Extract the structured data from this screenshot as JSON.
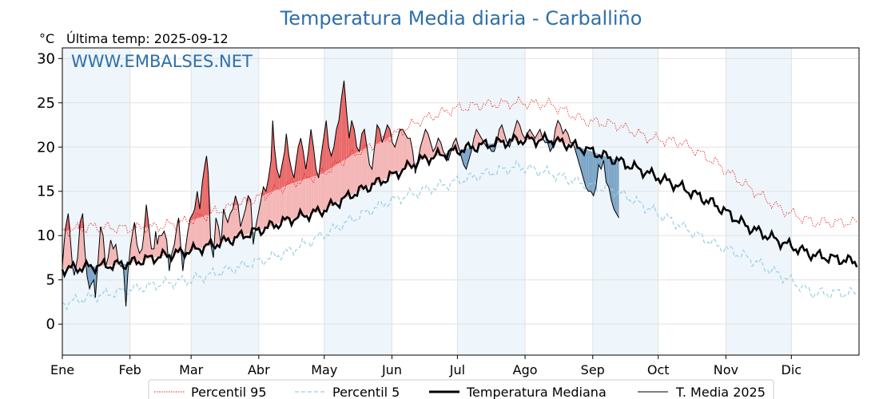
{
  "chart_data": {
    "type": "line",
    "title": "Temperatura Media diaria - Carballiño",
    "unit": "°C",
    "subtitle": "Última temp: 2025-09-12",
    "watermark": "WWW.EMBALSES.NET",
    "ylim": [
      -3.5,
      31.2
    ],
    "y_ticks": [
      0,
      5,
      10,
      15,
      20,
      25,
      30
    ],
    "x_ticks": [
      "Ene",
      "Feb",
      "Mar",
      "Abr",
      "May",
      "Jun",
      "Jul",
      "Ago",
      "Sep",
      "Oct",
      "Nov",
      "Dic"
    ],
    "grid": true,
    "legend_position": "bottom",
    "colors": {
      "p95": "#e8201c",
      "p5": "#9ccfe0",
      "median": "#000000",
      "current": "#000000",
      "above_fill": "#f4b6b6",
      "below_fill": "#7ea6c8",
      "band": "#eef5fb",
      "title": "#2e6fa8"
    },
    "series": [
      {
        "name": "Percentil 95",
        "style": "dotted",
        "points": [
          [
            1,
            10.5
          ],
          [
            15,
            11
          ],
          [
            30,
            10.8
          ],
          [
            45,
            11
          ],
          [
            60,
            11.7
          ],
          [
            75,
            13
          ],
          [
            90,
            14.2
          ],
          [
            105,
            15.8
          ],
          [
            120,
            17
          ],
          [
            135,
            19.3
          ],
          [
            150,
            21
          ],
          [
            165,
            23
          ],
          [
            180,
            24.3
          ],
          [
            195,
            24.8
          ],
          [
            210,
            25
          ],
          [
            225,
            24.8
          ],
          [
            240,
            23
          ],
          [
            255,
            22.5
          ],
          [
            270,
            21
          ],
          [
            285,
            20.5
          ],
          [
            300,
            18.3
          ],
          [
            315,
            15.5
          ],
          [
            330,
            13
          ],
          [
            345,
            11.5
          ],
          [
            365,
            11.5
          ]
        ]
      },
      {
        "name": "Percentil 5",
        "style": "dashed",
        "points": [
          [
            1,
            2.3
          ],
          [
            15,
            3.1
          ],
          [
            30,
            3.8
          ],
          [
            45,
            4.5
          ],
          [
            60,
            5
          ],
          [
            75,
            6
          ],
          [
            90,
            7
          ],
          [
            105,
            8.2
          ],
          [
            120,
            10
          ],
          [
            135,
            12
          ],
          [
            150,
            13.8
          ],
          [
            165,
            15
          ],
          [
            180,
            16
          ],
          [
            195,
            17
          ],
          [
            210,
            17.8
          ],
          [
            225,
            17
          ],
          [
            240,
            15.8
          ],
          [
            255,
            15
          ],
          [
            270,
            13
          ],
          [
            285,
            11
          ],
          [
            300,
            9
          ],
          [
            315,
            7.5
          ],
          [
            330,
            5.5
          ],
          [
            345,
            3.5
          ],
          [
            365,
            3.5
          ]
        ]
      },
      {
        "name": "Temperatura Mediana",
        "style": "thick",
        "points": [
          [
            1,
            6.2
          ],
          [
            15,
            6.5
          ],
          [
            30,
            6.8
          ],
          [
            45,
            7.6
          ],
          [
            60,
            8.3
          ],
          [
            75,
            9.3
          ],
          [
            90,
            10.5
          ],
          [
            105,
            11.8
          ],
          [
            120,
            12.8
          ],
          [
            135,
            14.8
          ],
          [
            150,
            16.5
          ],
          [
            165,
            18.5
          ],
          [
            180,
            19.5
          ],
          [
            195,
            20.3
          ],
          [
            210,
            20.8
          ],
          [
            225,
            20.8
          ],
          [
            240,
            19.8
          ],
          [
            255,
            18.5
          ],
          [
            270,
            17
          ],
          [
            285,
            15.4
          ],
          [
            300,
            13.5
          ],
          [
            315,
            11
          ],
          [
            330,
            9.3
          ],
          [
            345,
            7.8
          ],
          [
            365,
            7
          ]
        ]
      },
      {
        "name": "T. Media 2025",
        "style": "thin",
        "points": [
          [
            1,
            6.5
          ],
          [
            3,
            9
          ],
          [
            5,
            11
          ],
          [
            8,
            12.5
          ],
          [
            11,
            9
          ],
          [
            13,
            6.5
          ],
          [
            15,
            5.5
          ],
          [
            19,
            7.5
          ],
          [
            22,
            11.5
          ],
          [
            25,
            12.5
          ],
          [
            27,
            9
          ],
          [
            30,
            5.5
          ],
          [
            33,
            4
          ],
          [
            35,
            4.5
          ],
          [
            38,
            5
          ],
          [
            40,
            3
          ],
          [
            43,
            7
          ],
          [
            46,
            11
          ],
          [
            49,
            10
          ],
          [
            52,
            6.5
          ],
          [
            55,
            7.5
          ],
          [
            58,
            9.5
          ],
          [
            61,
            8.5
          ],
          [
            64,
            9
          ],
          [
            67,
            7
          ],
          [
            70,
            6.5
          ],
          [
            73,
            6.5
          ],
          [
            76,
            2
          ],
          [
            78,
            5.5
          ],
          [
            81,
            8.5
          ],
          [
            84,
            10.5
          ],
          [
            86,
            11.5
          ],
          [
            89,
            9
          ],
          [
            92,
            8
          ],
          [
            95,
            8.5
          ],
          [
            97,
            10
          ],
          [
            100,
            13.5
          ],
          [
            103,
            11
          ],
          [
            106,
            8.5
          ],
          [
            109,
            8.5
          ],
          [
            111,
            10.5
          ],
          [
            113,
            9
          ],
          [
            115,
            10
          ],
          [
            118,
            10
          ],
          [
            121,
            10.5
          ],
          [
            124,
            9.5
          ],
          [
            127,
            6
          ],
          [
            130,
            8
          ],
          [
            133,
            9
          ],
          [
            136,
            11
          ],
          [
            138,
            12
          ],
          [
            140,
            9.5
          ],
          [
            143,
            6
          ],
          [
            146,
            8.5
          ],
          [
            149,
            10.5
          ],
          [
            152,
            12
          ],
          [
            155,
            12.5
          ],
          [
            157,
            13
          ],
          [
            160,
            15
          ],
          [
            163,
            13
          ],
          [
            166,
            16
          ],
          [
            169,
            18
          ],
          [
            171,
            19
          ],
          [
            173,
            17
          ],
          [
            176,
            9
          ],
          [
            179,
            7.5
          ],
          [
            182,
            12
          ],
          [
            185,
            11
          ],
          [
            188,
            9
          ],
          [
            191,
            13
          ],
          [
            194,
            12
          ],
          [
            196,
            11.5
          ],
          [
            199,
            12.5
          ],
          [
            202,
            13
          ],
          [
            205,
            14.5
          ],
          [
            208,
            13.5
          ],
          [
            211,
            11
          ],
          [
            214,
            12
          ],
          [
            217,
            13
          ],
          [
            220,
            14.5
          ],
          [
            223,
            14
          ],
          [
            226,
            9
          ],
          [
            229,
            11
          ],
          [
            232,
            12.5
          ],
          [
            235,
            14
          ],
          [
            238,
            15.5
          ],
          [
            241,
            15
          ],
          [
            244,
            16.5
          ],
          [
            247,
            18.5
          ],
          [
            249,
            23
          ],
          [
            251,
            20
          ],
          [
            254,
            17.5
          ],
          [
            257,
            16.5
          ],
          [
            260,
            18
          ],
          [
            263,
            19.5
          ],
          [
            265,
            21.5
          ],
          [
            268,
            19
          ],
          [
            271,
            17.5
          ],
          [
            274,
            16.5
          ],
          [
            276,
            18
          ],
          [
            279,
            20
          ],
          [
            282,
            21
          ],
          [
            285,
            19.5
          ],
          [
            288,
            17.5
          ],
          [
            291,
            19.5
          ],
          [
            294,
            22
          ],
          [
            297,
            20
          ],
          [
            300,
            17.5
          ],
          [
            303,
            16.5
          ],
          [
            306,
            19
          ],
          [
            309,
            21
          ],
          [
            312,
            23
          ],
          [
            315,
            20
          ],
          [
            318,
            19
          ],
          [
            321,
            20
          ],
          [
            324,
            22
          ],
          [
            327,
            23
          ],
          [
            330,
            25.5
          ],
          [
            333,
            27.5
          ],
          [
            336,
            24
          ],
          [
            339,
            21
          ],
          [
            342,
            23
          ],
          [
            345,
            22
          ],
          [
            348,
            20
          ],
          [
            351,
            19.5
          ],
          [
            354,
            21.5
          ],
          [
            357,
            22
          ],
          [
            360,
            20
          ],
          [
            363,
            18
          ],
          [
            366,
            17.5
          ],
          [
            369,
            20
          ],
          [
            372,
            22.5
          ],
          [
            375,
            22
          ],
          [
            378,
            20.5
          ],
          [
            381,
            21.5
          ],
          [
            384,
            22.5
          ],
          [
            387,
            22
          ],
          [
            390,
            20.5
          ],
          [
            393,
            20
          ],
          [
            396,
            21
          ],
          [
            399,
            22
          ],
          [
            402,
            22
          ],
          [
            405,
            21.5
          ],
          [
            408,
            21
          ],
          [
            411,
            21
          ],
          [
            414,
            19.5
          ],
          [
            417,
            17
          ],
          [
            420,
            18.5
          ],
          [
            423,
            20
          ],
          [
            426,
            21
          ],
          [
            429,
            22
          ],
          [
            432,
            21.5
          ],
          [
            435,
            20.5
          ],
          [
            438,
            19.5
          ],
          [
            441,
            20
          ],
          [
            444,
            21
          ],
          [
            447,
            20.5
          ],
          [
            450,
            19.5
          ],
          [
            453,
            19
          ],
          [
            456,
            18.5
          ],
          [
            459,
            19.5
          ],
          [
            462,
            20.5
          ],
          [
            465,
            21
          ],
          [
            468,
            20
          ],
          [
            471,
            19
          ],
          [
            474,
            18
          ],
          [
            477,
            17.5
          ],
          [
            480,
            18.5
          ],
          [
            483,
            19.5
          ],
          [
            486,
            21
          ],
          [
            489,
            22
          ],
          [
            492,
            21.5
          ],
          [
            495,
            21
          ],
          [
            498,
            20.5
          ],
          [
            501,
            20
          ],
          [
            504,
            20
          ],
          [
            507,
            19.5
          ],
          [
            510,
            19.5
          ],
          [
            513,
            20.5
          ],
          [
            516,
            22
          ],
          [
            519,
            22.5
          ],
          [
            522,
            21.5
          ],
          [
            525,
            20.5
          ],
          [
            528,
            20
          ],
          [
            531,
            21
          ],
          [
            534,
            22
          ],
          [
            537,
            23
          ],
          [
            540,
            22.5
          ],
          [
            543,
            21.5
          ],
          [
            546,
            21
          ],
          [
            549,
            21.5
          ],
          [
            552,
            22
          ],
          [
            555,
            21.5
          ],
          [
            558,
            21
          ],
          [
            561,
            21.5
          ],
          [
            564,
            22
          ],
          [
            567,
            21
          ],
          [
            570,
            20.5
          ],
          [
            573,
            20.5
          ],
          [
            576,
            19.5
          ],
          [
            579,
            20
          ],
          [
            582,
            22
          ],
          [
            585,
            23
          ],
          [
            588,
            22.5
          ],
          [
            591,
            21.5
          ],
          [
            594,
            22
          ],
          [
            597,
            21.5
          ],
          [
            600,
            20.5
          ],
          [
            603,
            20.5
          ],
          [
            606,
            19.5
          ],
          [
            609,
            18.5
          ],
          [
            612,
            17.5
          ],
          [
            615,
            16.5
          ],
          [
            618,
            15.5
          ],
          [
            621,
            15
          ],
          [
            624,
            15
          ],
          [
            627,
            14.5
          ],
          [
            630,
            15.5
          ],
          [
            633,
            18
          ],
          [
            636,
            17.5
          ],
          [
            639,
            18.5
          ],
          [
            642,
            16
          ],
          [
            645,
            15.5
          ],
          [
            648,
            14
          ],
          [
            651,
            13
          ],
          [
            654,
            12.5
          ],
          [
            657,
            12
          ]
        ]
      }
    ]
  }
}
